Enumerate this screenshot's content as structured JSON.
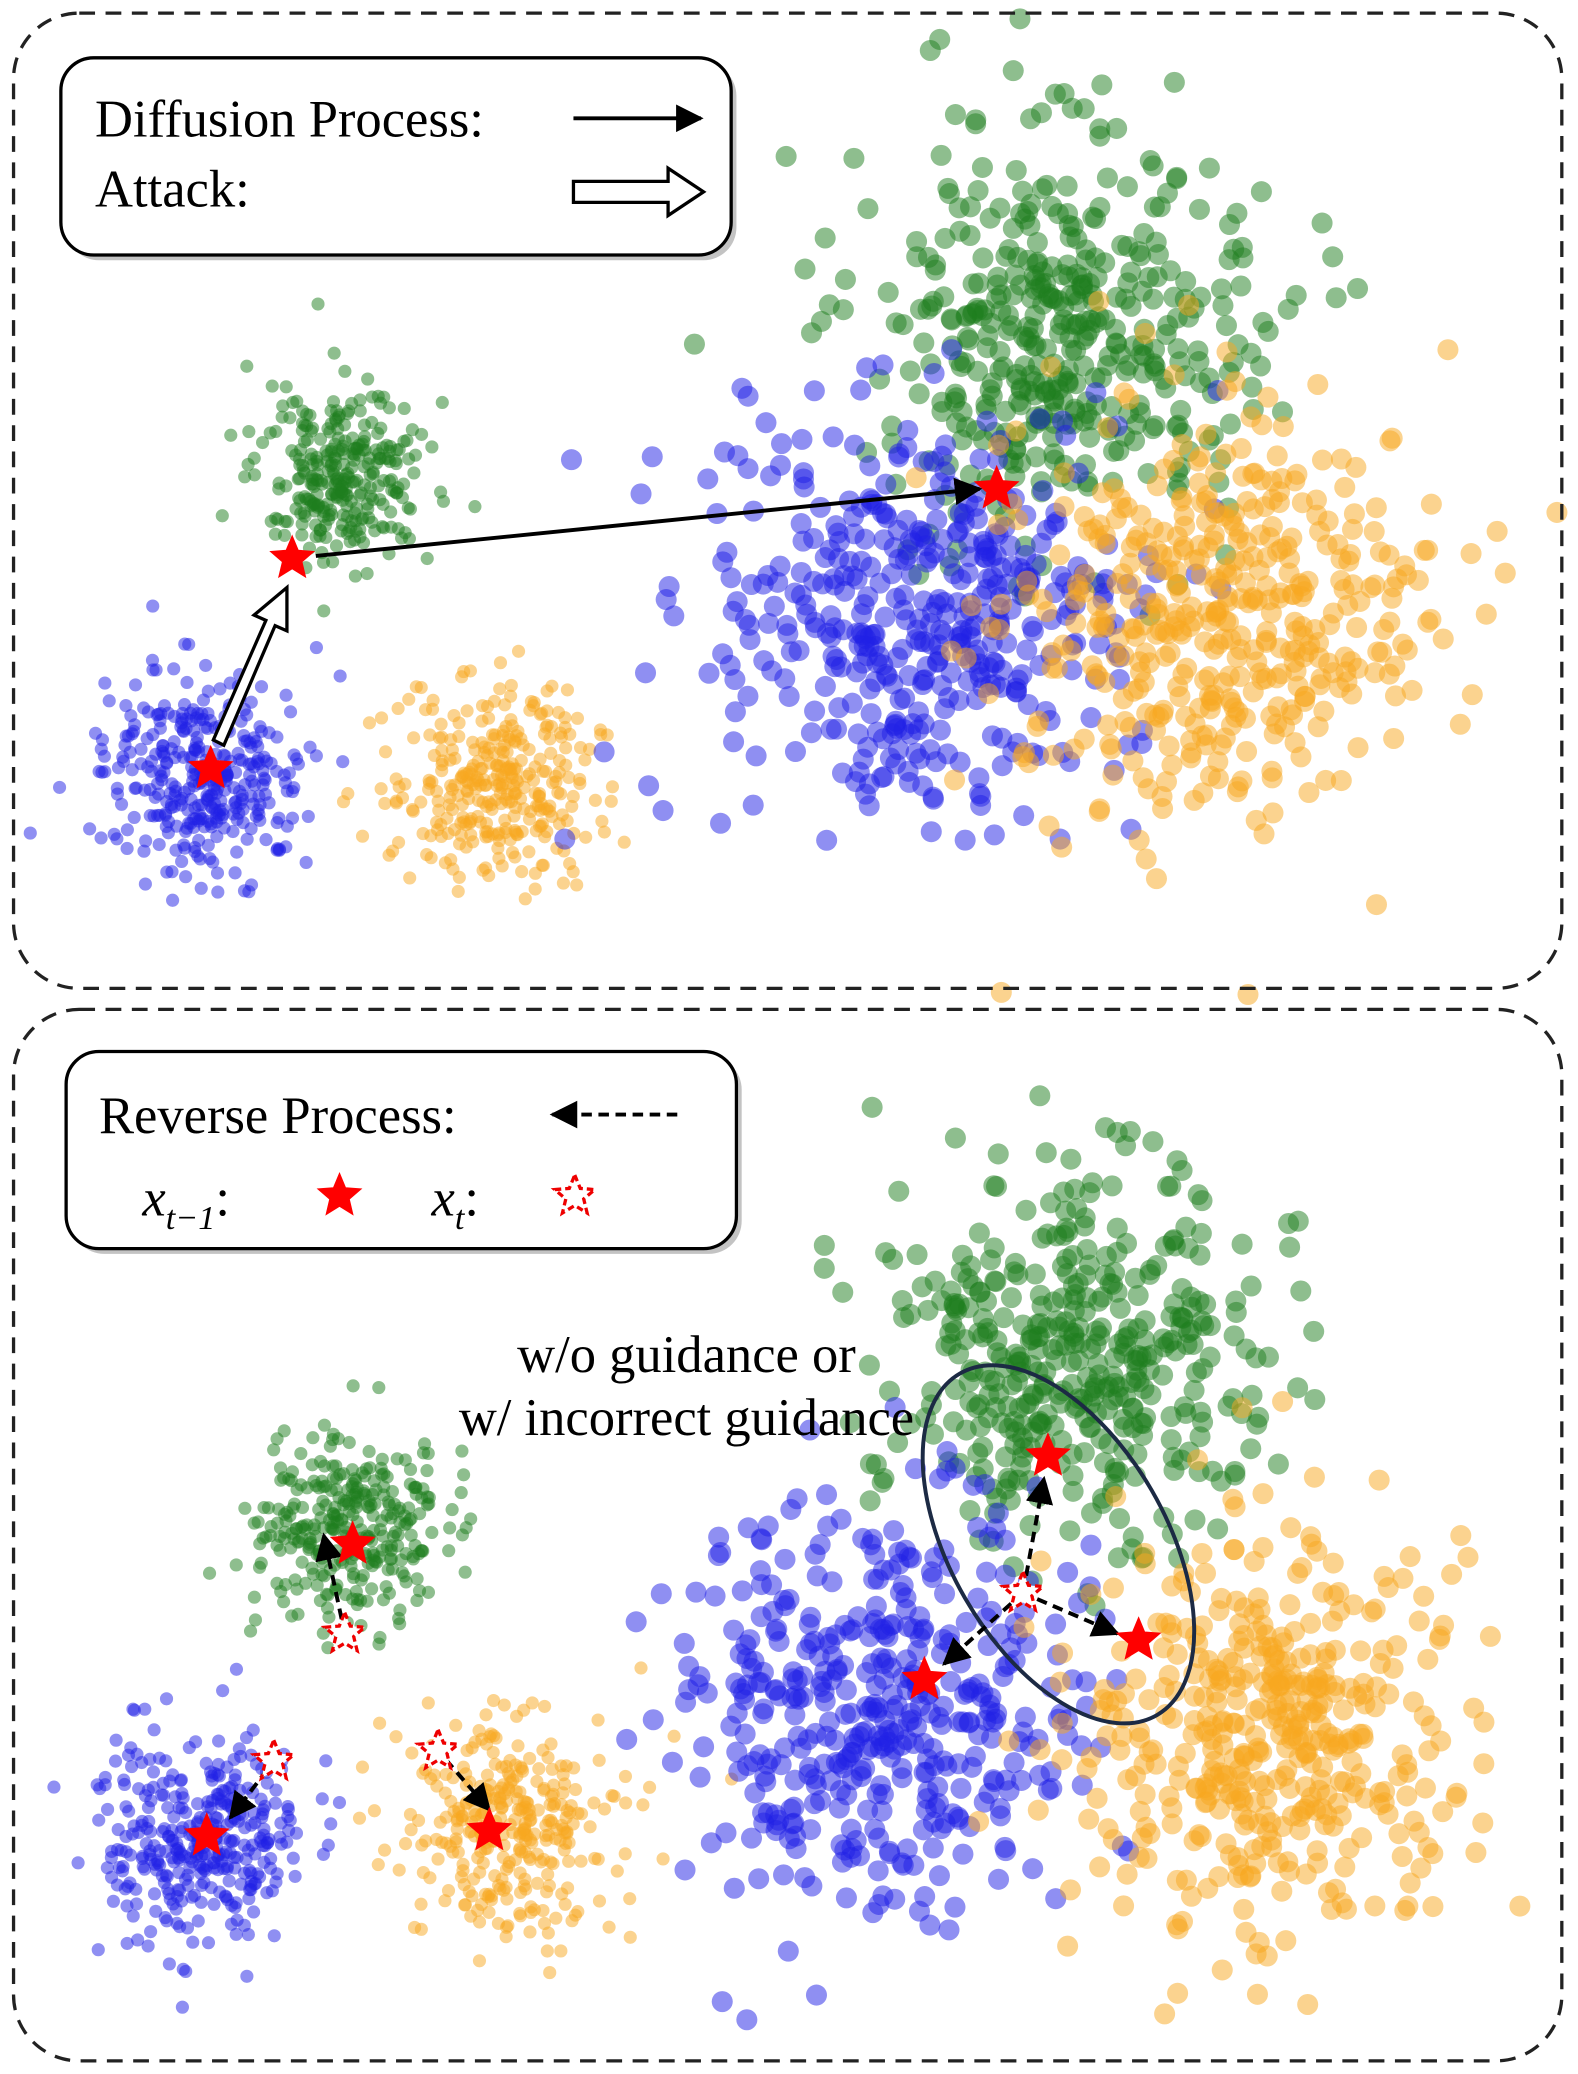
{
  "top_panel": {
    "legend": {
      "diffusion_label": "Diffusion Process:",
      "attack_label": "Attack:"
    }
  },
  "bottom_panel": {
    "legend": {
      "reverse_label": "Reverse Process:",
      "prev_symbol": "x",
      "prev_subscript": "t−1",
      "curr_symbol": "x",
      "curr_subscript": "t",
      "colon": ":"
    },
    "annotation": {
      "line1": "w/o guidance or",
      "line2": "w/ incorrect guidance"
    }
  }
}
